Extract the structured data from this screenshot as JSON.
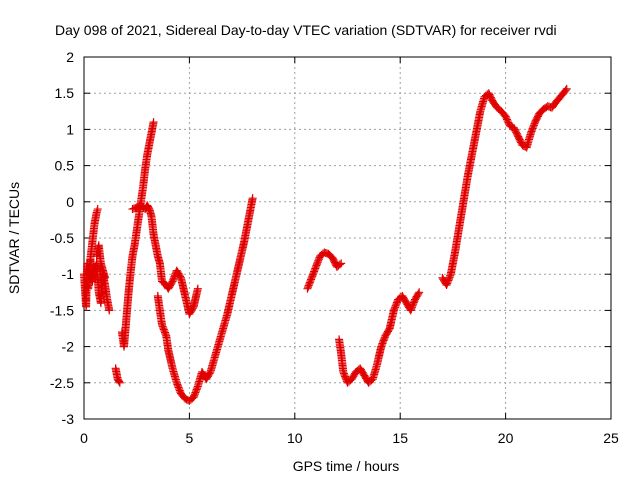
{
  "chart_data": {
    "type": "scatter",
    "title": "Day 098 of 2021, Sidereal Day-to-day VTEC variation (SDTVAR) for receiver rvdi",
    "xlabel": "GPS time / hours",
    "ylabel": "SDTVAR / TECUs",
    "xlim": [
      0,
      25
    ],
    "ylim": [
      -3,
      2
    ],
    "xticks": [
      "0",
      "5",
      "10",
      "15",
      "20",
      "25"
    ],
    "yticks": [
      "2",
      "1.5",
      "1",
      "0.5",
      "0",
      "-0.5",
      "-1",
      "-1.5",
      "-2",
      "-2.5",
      "-3"
    ],
    "grid": true,
    "marker": "plus",
    "color": "#e00000",
    "series": [
      {
        "segments": [
          [
            [
              0.0,
              -1.0
            ],
            [
              0.1,
              -1.45
            ],
            [
              0.15,
              -0.85
            ],
            [
              0.2,
              -1.2
            ],
            [
              0.3,
              -0.8
            ],
            [
              0.4,
              -1.1
            ],
            [
              0.5,
              -0.95
            ],
            [
              0.6,
              -0.85
            ],
            [
              0.7,
              -1.25
            ],
            [
              0.8,
              -1.4
            ],
            [
              0.9,
              -1.0
            ],
            [
              1.0,
              -1.15
            ],
            [
              1.1,
              -1.35
            ],
            [
              1.2,
              -1.5
            ]
          ],
          [
            [
              0.3,
              -0.8
            ],
            [
              0.4,
              -0.55
            ],
            [
              0.5,
              -0.3
            ],
            [
              0.6,
              -0.15
            ],
            [
              0.65,
              -0.1
            ]
          ],
          [
            [
              0.6,
              -0.75
            ],
            [
              0.7,
              -0.6
            ],
            [
              0.8,
              -0.85
            ],
            [
              0.9,
              -0.95
            ],
            [
              1.0,
              -1.05
            ]
          ],
          [
            [
              1.5,
              -2.3
            ],
            [
              1.6,
              -2.45
            ],
            [
              1.7,
              -2.5
            ]
          ],
          [
            [
              1.8,
              -1.8
            ],
            [
              1.9,
              -2.0
            ],
            [
              2.0,
              -1.65
            ],
            [
              2.1,
              -1.3
            ],
            [
              2.2,
              -1.0
            ],
            [
              2.3,
              -0.75
            ],
            [
              2.4,
              -0.6
            ],
            [
              2.5,
              -0.4
            ],
            [
              2.6,
              -0.2
            ],
            [
              2.7,
              0.0
            ],
            [
              2.8,
              0.2
            ],
            [
              2.9,
              0.45
            ],
            [
              3.0,
              0.65
            ],
            [
              3.1,
              0.8
            ],
            [
              3.2,
              0.95
            ],
            [
              3.3,
              1.1
            ]
          ],
          [
            [
              2.3,
              -0.1
            ],
            [
              2.5,
              -0.08
            ],
            [
              2.7,
              -0.05
            ],
            [
              2.9,
              -0.1
            ],
            [
              3.0,
              -0.05
            ],
            [
              3.1,
              -0.1
            ],
            [
              3.2,
              -0.2
            ],
            [
              3.3,
              -0.45
            ],
            [
              3.4,
              -0.6
            ],
            [
              3.5,
              -0.75
            ],
            [
              3.6,
              -0.85
            ],
            [
              3.7,
              -1.1
            ],
            [
              3.9,
              -1.15
            ],
            [
              4.0,
              -1.2
            ],
            [
              4.2,
              -1.1
            ],
            [
              4.4,
              -0.95
            ],
            [
              4.6,
              -1.05
            ],
            [
              4.8,
              -1.3
            ],
            [
              5.0,
              -1.55
            ],
            [
              5.2,
              -1.45
            ],
            [
              5.4,
              -1.2
            ]
          ],
          [
            [
              3.5,
              -1.3
            ],
            [
              3.6,
              -1.5
            ],
            [
              3.7,
              -1.7
            ],
            [
              3.9,
              -1.85
            ],
            [
              4.0,
              -2.05
            ],
            [
              4.2,
              -2.3
            ],
            [
              4.4,
              -2.5
            ],
            [
              4.6,
              -2.65
            ],
            [
              4.8,
              -2.72
            ],
            [
              5.0,
              -2.75
            ],
            [
              5.2,
              -2.7
            ],
            [
              5.4,
              -2.55
            ],
            [
              5.6,
              -2.35
            ],
            [
              5.8,
              -2.45
            ],
            [
              6.0,
              -2.35
            ],
            [
              6.2,
              -2.15
            ],
            [
              6.4,
              -1.95
            ],
            [
              6.6,
              -1.75
            ],
            [
              6.8,
              -1.55
            ],
            [
              7.0,
              -1.3
            ],
            [
              7.2,
              -1.05
            ],
            [
              7.4,
              -0.8
            ],
            [
              7.6,
              -0.55
            ],
            [
              7.8,
              -0.25
            ],
            [
              8.0,
              0.05
            ]
          ],
          [
            [
              10.6,
              -1.2
            ],
            [
              10.8,
              -1.05
            ],
            [
              11.0,
              -0.9
            ],
            [
              11.2,
              -0.75
            ],
            [
              11.4,
              -0.7
            ],
            [
              11.6,
              -0.72
            ],
            [
              11.8,
              -0.78
            ],
            [
              12.0,
              -0.9
            ],
            [
              12.2,
              -0.85
            ]
          ],
          [
            [
              12.1,
              -1.9
            ],
            [
              12.2,
              -2.1
            ],
            [
              12.3,
              -2.35
            ],
            [
              12.5,
              -2.5
            ],
            [
              12.7,
              -2.45
            ],
            [
              12.9,
              -2.35
            ],
            [
              13.1,
              -2.3
            ],
            [
              13.3,
              -2.4
            ],
            [
              13.5,
              -2.5
            ],
            [
              13.7,
              -2.45
            ],
            [
              13.9,
              -2.25
            ],
            [
              14.1,
              -2.0
            ],
            [
              14.3,
              -1.85
            ],
            [
              14.5,
              -1.75
            ],
            [
              14.7,
              -1.5
            ],
            [
              14.9,
              -1.35
            ],
            [
              15.1,
              -1.3
            ],
            [
              15.3,
              -1.4
            ],
            [
              15.5,
              -1.5
            ],
            [
              15.7,
              -1.35
            ],
            [
              15.9,
              -1.25
            ]
          ],
          [
            [
              17.0,
              -1.05
            ],
            [
              17.2,
              -1.15
            ],
            [
              17.4,
              -1.0
            ],
            [
              17.6,
              -0.7
            ],
            [
              17.8,
              -0.35
            ],
            [
              18.0,
              0.0
            ],
            [
              18.2,
              0.35
            ],
            [
              18.4,
              0.65
            ],
            [
              18.6,
              0.95
            ],
            [
              18.8,
              1.25
            ],
            [
              19.0,
              1.45
            ],
            [
              19.2,
              1.5
            ],
            [
              19.4,
              1.38
            ],
            [
              19.6,
              1.3
            ],
            [
              19.8,
              1.25
            ],
            [
              20.0,
              1.18
            ],
            [
              20.2,
              1.05
            ],
            [
              20.4,
              1.02
            ],
            [
              20.6,
              0.9
            ],
            [
              20.8,
              0.78
            ],
            [
              21.0,
              0.75
            ],
            [
              21.2,
              0.95
            ],
            [
              21.4,
              1.1
            ],
            [
              21.6,
              1.22
            ],
            [
              21.8,
              1.28
            ],
            [
              22.0,
              1.32
            ],
            [
              22.2,
              1.3
            ],
            [
              22.4,
              1.38
            ],
            [
              22.6,
              1.45
            ],
            [
              22.8,
              1.52
            ],
            [
              22.9,
              1.56
            ]
          ]
        ]
      }
    ]
  }
}
